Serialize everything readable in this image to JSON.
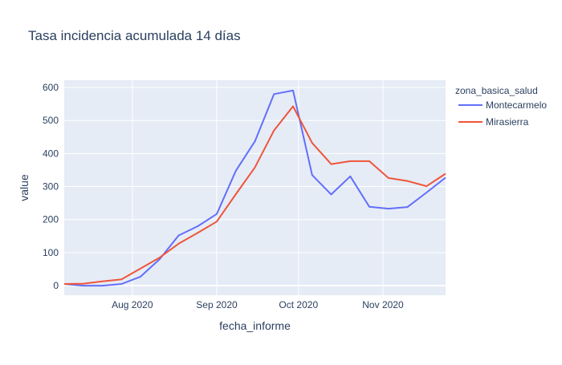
{
  "chart_data": {
    "type": "line",
    "title": "Tasa incidencia acumulada 14 días",
    "xlabel": "fecha_informe",
    "ylabel": "value",
    "x": [
      "2020-07-07",
      "2020-07-14",
      "2020-07-21",
      "2020-07-28",
      "2020-08-04",
      "2020-08-11",
      "2020-08-18",
      "2020-08-25",
      "2020-09-01",
      "2020-09-08",
      "2020-09-15",
      "2020-09-22",
      "2020-09-29",
      "2020-10-06",
      "2020-10-13",
      "2020-10-20",
      "2020-10-27",
      "2020-11-03",
      "2020-11-10",
      "2020-11-17",
      "2020-11-24"
    ],
    "xlim": [
      "2020-07-07",
      "2020-11-24"
    ],
    "ylim": [
      -29,
      622
    ],
    "xticks": [
      {
        "date": "2020-08-01",
        "label": "Aug 2020"
      },
      {
        "date": "2020-09-01",
        "label": "Sep 2020"
      },
      {
        "date": "2020-10-01",
        "label": "Oct 2020"
      },
      {
        "date": "2020-11-01",
        "label": "Nov 2020"
      }
    ],
    "yticks": [
      0,
      100,
      200,
      300,
      400,
      500,
      600
    ],
    "grid": true,
    "legend_title": "zona_basica_salud",
    "legend_placement": "top-right-outside",
    "series": [
      {
        "name": "Montecarmelo",
        "color": "#636efa",
        "values": [
          5,
          0,
          0,
          5,
          27,
          80,
          152,
          180,
          217,
          348,
          437,
          580,
          591,
          335,
          276,
          331,
          239,
          233,
          238,
          282,
          327
        ]
      },
      {
        "name": "Mirasierra",
        "color": "#EF553B",
        "values": [
          5,
          6,
          13,
          19,
          52,
          85,
          127,
          160,
          194,
          277,
          358,
          470,
          543,
          432,
          368,
          377,
          377,
          326,
          317,
          301,
          339
        ]
      }
    ]
  }
}
